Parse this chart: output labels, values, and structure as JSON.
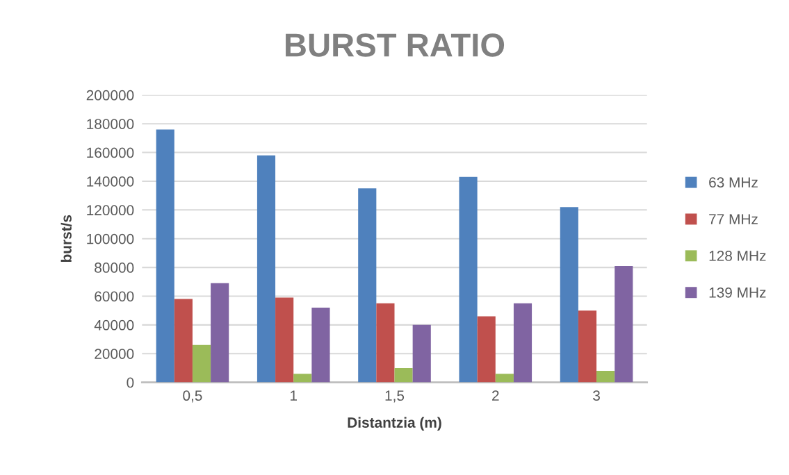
{
  "chart_data": {
    "type": "bar",
    "title": "BURST RATIO",
    "xlabel": "Distantzia (m)",
    "ylabel": "burst/s",
    "categories": [
      "0,5",
      "1",
      "1,5",
      "2",
      "3"
    ],
    "series": [
      {
        "name": "63 MHz",
        "color": "#4f81bd",
        "values": [
          176000,
          158000,
          135000,
          143000,
          122000
        ]
      },
      {
        "name": "77 MHz",
        "color": "#c0504d",
        "values": [
          58000,
          59000,
          55000,
          46000,
          50000
        ]
      },
      {
        "name": "128 MHz",
        "color": "#9bbb59",
        "values": [
          26000,
          6000,
          10000,
          6000,
          8000
        ]
      },
      {
        "name": "139 MHz",
        "color": "#8064a2",
        "values": [
          69000,
          52000,
          40000,
          55000,
          81000
        ]
      }
    ],
    "ylim": [
      0,
      200000
    ],
    "yticks": [
      0,
      20000,
      40000,
      60000,
      80000,
      100000,
      120000,
      140000,
      160000,
      180000,
      200000
    ],
    "grid": "y",
    "legend": "right"
  }
}
